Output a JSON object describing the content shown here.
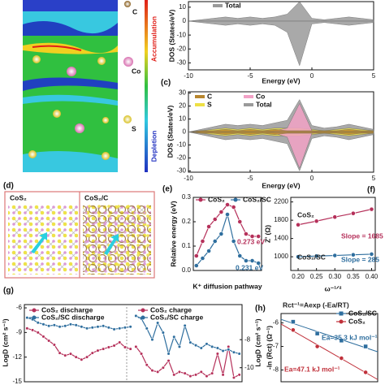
{
  "chart_data": [
    {
      "type": "area",
      "xlabel": "Energy (eV)",
      "ylabel": "DOS (States/eV)",
      "x": [
        -10,
        -9,
        -8,
        -7,
        -6,
        -5,
        -4,
        -3,
        -2,
        -1,
        0,
        1,
        2,
        3,
        4,
        5
      ],
      "series": [
        {
          "name": "Total",
          "color": "#9a9a9a",
          "values": [
            0,
            1,
            2,
            3,
            2,
            3,
            2,
            3,
            5,
            14,
            2,
            1,
            2,
            3,
            2,
            1
          ],
          "values_down": [
            0,
            -1,
            -2,
            -3,
            -2,
            -3,
            -2,
            -3,
            -8,
            -32,
            -2,
            -1,
            -2,
            -3,
            -2,
            -1
          ]
        }
      ],
      "xlim": [
        -10,
        5
      ],
      "xticks": [
        -10,
        -5,
        0,
        5
      ],
      "ylim": [
        -35,
        14
      ],
      "yticks": [
        10,
        0,
        -10,
        -20,
        -30
      ]
    },
    {
      "type": "area",
      "panel_label": "(c)",
      "xlabel": "Energy (eV)",
      "ylabel": "DOS (States/eV)",
      "x": [
        -10,
        -9,
        -8,
        -7,
        -6,
        -5,
        -4,
        -3,
        -2,
        -1,
        0,
        1,
        2,
        3,
        4,
        5
      ],
      "series": [
        {
          "name": "C",
          "color": "#b8862e",
          "values": [
            0,
            1,
            1,
            2,
            1,
            2,
            1,
            2,
            1,
            1,
            1,
            1,
            1,
            2,
            1,
            1
          ],
          "values_down": [
            0,
            -1,
            -1,
            -2,
            -1,
            -2,
            -1,
            -2,
            -1,
            -1,
            -1,
            -1,
            -1,
            -2,
            -1,
            -1
          ]
        },
        {
          "name": "Co",
          "color": "#f2a2c6",
          "values": [
            0,
            0,
            0,
            0,
            0,
            0,
            0,
            1,
            3,
            22,
            1,
            0,
            0,
            0,
            0,
            0
          ],
          "values_down": [
            0,
            0,
            0,
            0,
            0,
            0,
            0,
            -1,
            -4,
            -28,
            -1,
            0,
            0,
            0,
            0,
            0
          ]
        },
        {
          "name": "S",
          "color": "#eee044",
          "values": [
            0,
            1,
            2,
            3,
            2,
            3,
            2,
            3,
            3,
            3,
            2,
            1,
            2,
            3,
            2,
            1
          ],
          "values_down": [
            0,
            -1,
            -2,
            -3,
            -2,
            -3,
            -2,
            -3,
            -3,
            -3,
            -2,
            -1,
            -2,
            -3,
            -2,
            -1
          ]
        },
        {
          "name": "Total",
          "color": "#9a9a9a",
          "values": [
            0,
            2,
            4,
            6,
            5,
            6,
            5,
            7,
            9,
            25,
            5,
            3,
            4,
            6,
            4,
            2
          ],
          "values_down": [
            0,
            -2,
            -4,
            -6,
            -5,
            -6,
            -5,
            -7,
            -9,
            -30,
            -5,
            -3,
            -4,
            -6,
            -4,
            -2
          ]
        }
      ],
      "xlim": [
        -10,
        5
      ],
      "xticks": [
        -10,
        -5,
        0,
        5
      ],
      "ylim": [
        -31,
        31
      ],
      "yticks": [
        30,
        20,
        10,
        0,
        -10,
        -20,
        -30
      ]
    },
    {
      "type": "line",
      "panel_label": "(e)",
      "xlabel": "K⁺ diffusion pathway",
      "ylabel": "Relative energy (eV)",
      "categories": [
        null,
        null,
        null,
        null,
        null,
        null,
        null,
        null,
        null,
        null,
        null
      ],
      "series": [
        {
          "name": "CoS₂",
          "color": "#b5305a",
          "values": [
            0.06,
            0.12,
            0.18,
            0.21,
            0.24,
            0.27,
            0.26,
            0.2,
            0.15,
            0.14,
            0.14
          ]
        },
        {
          "name": "CoS₂/SC",
          "color": "#2e6e9e",
          "values": [
            0.02,
            0.05,
            0.08,
            0.12,
            0.15,
            0.23,
            0.12,
            0.06,
            0.04,
            0.04,
            0.03
          ]
        }
      ],
      "ylim": [
        0,
        0.3
      ],
      "yticks": [
        {
          "value": 0,
          "label": "0.0"
        },
        0.1,
        0.2,
        0.3
      ],
      "annotations": [
        {
          "text": "0.273 eV",
          "color": "#b5305a"
        },
        {
          "text": "0.231 eV",
          "color": "#2e6e9e"
        }
      ]
    },
    {
      "type": "line",
      "panel_label": "(f)",
      "xlabel": "ω⁻¹ᐟ²",
      "ylabel": "Z' (Ω)",
      "x": [
        0.2,
        0.25,
        0.3,
        0.35,
        0.4
      ],
      "series": [
        {
          "name": "CoS₂",
          "color": "#b5305a",
          "values": [
            1700,
            1780,
            1870,
            1950,
            2040
          ]
        },
        {
          "name": "CoS₂/SC",
          "color": "#2e6e9e",
          "values": [
            1000,
            1015,
            1028,
            1043,
            1057
          ]
        }
      ],
      "xlim": [
        0.18,
        0.41
      ],
      "xticks": [
        {
          "value": 0.2,
          "label": "0.20"
        },
        {
          "value": 0.25,
          "label": "0.25"
        },
        {
          "value": 0.3,
          "label": "0.30"
        },
        {
          "value": 0.35,
          "label": "0.35"
        },
        {
          "value": 0.4,
          "label": "0.40"
        }
      ],
      "ylim": [
        700,
        2300
      ],
      "yticks": [
        1000,
        1400,
        1800,
        2200
      ],
      "annotations": [
        {
          "text": "CoS₂",
          "color": "#222"
        },
        {
          "text": "CoS₂/SC",
          "color": "#222"
        },
        {
          "text": "Slope = 1685",
          "color": "#b5305a"
        },
        {
          "text": "Slope = 285",
          "color": "#2e6e9e"
        }
      ]
    },
    {
      "type": "line",
      "panel_label": "(g)",
      "ylabel": "LogD (cm² s⁻¹)",
      "y2label": "LogD (cm² s⁻¹)",
      "categories": [
        null,
        null,
        null,
        null,
        null,
        null,
        null,
        null,
        null,
        null,
        null,
        null,
        null,
        null,
        null,
        null,
        null,
        null,
        null,
        null,
        null,
        null,
        null,
        null,
        null,
        null,
        null,
        null,
        null,
        null,
        null,
        null,
        null,
        null,
        null,
        null,
        null,
        null,
        null,
        null
      ],
      "series": [
        {
          "name": "CoS₂ discharge",
          "color": "#b5305a",
          "values": [
            -8.5,
            -8.7,
            -9.0,
            -9.5,
            -10,
            -10.5,
            -11.5,
            -11.8,
            -11.6,
            -12,
            -12.3,
            -12.0,
            -11.5,
            -11.2,
            -11.0,
            -10.8,
            -10.6,
            -10.2,
            -10.8,
            -11,
            null,
            null,
            null,
            null,
            null,
            null,
            null,
            null,
            null,
            null,
            null,
            null,
            null,
            null,
            null,
            null,
            null,
            null,
            null,
            null
          ]
        },
        {
          "name": "CoS₂/SC discharge",
          "color": "#2e6e9e",
          "values": [
            -7.2,
            -7.4,
            -7.8,
            -8.0,
            -8.2,
            -8.1,
            -8.3,
            -8.2,
            -8.0,
            -8.1,
            -8.3,
            -8.5,
            -8.4,
            -8.3,
            -8.2,
            -8.4,
            -8.6,
            -8.5,
            -8.4,
            -8.3,
            null,
            null,
            null,
            null,
            null,
            null,
            null,
            null,
            null,
            null,
            null,
            null,
            null,
            null,
            null,
            null,
            null,
            null,
            null,
            null
          ]
        },
        {
          "name": "CoS₂ charge",
          "color": "#b5305a",
          "axis": "y2",
          "values": [
            null,
            null,
            null,
            null,
            null,
            null,
            null,
            null,
            null,
            null,
            null,
            null,
            null,
            null,
            null,
            null,
            null,
            null,
            null,
            null,
            -8.5,
            -9.0,
            -9.8,
            -10.2,
            -10.3,
            -10.0,
            -9.5,
            -10.5,
            -10.3,
            -10.4,
            -10.6,
            -10.5,
            -10.3,
            -10.6,
            -10.4,
            -9.0,
            -10.5,
            -8.5,
            -10.7,
            -10.5
          ]
        },
        {
          "name": "CoS₂/SC charge",
          "color": "#2e6e9e",
          "axis": "y2",
          "values": [
            null,
            null,
            null,
            null,
            null,
            null,
            null,
            null,
            null,
            null,
            null,
            null,
            null,
            null,
            null,
            null,
            null,
            null,
            null,
            null,
            -6.3,
            -6.5,
            -7.2,
            -8.0,
            -6.8,
            -7.5,
            -9.0,
            -7.8,
            -8.5,
            -7.0,
            -8.2,
            -8.4,
            -8.6,
            -8.3,
            -8.5,
            -8.6,
            -8.8,
            -8.7,
            -8.9,
            -9.0
          ]
        }
      ],
      "ylim": [
        -15,
        -5.6
      ],
      "yticks": [
        -6,
        -9,
        -12,
        -15
      ],
      "y2lim": [
        -11,
        -5.5
      ],
      "y2ticks": [
        -8,
        -10
      ]
    },
    {
      "type": "scatter",
      "panel_label": "(h)",
      "ylabel": "-ln (Rct) (Ω⁻¹)",
      "fit_line": true,
      "x": [
        0.5,
        1.5,
        2.5,
        3.5
      ],
      "series": [
        {
          "name": "CoS₂/SC",
          "color": "#2e6e9e",
          "marker": "square",
          "values": [
            -5.95,
            -6.45,
            -6.75,
            -7.0
          ]
        },
        {
          "name": "CoS₂",
          "color": "#c0303a",
          "marker": "circle",
          "values": [
            -6.3,
            -7.0,
            -7.5,
            -8.1
          ]
        }
      ],
      "xlim": [
        0,
        4
      ],
      "ylim": [
        -8.5,
        -5.6
      ],
      "yticks": [
        -6,
        -7,
        -8
      ],
      "annotations": [
        {
          "text": "Rct⁻¹=Aexp (-Ea/RT)",
          "color": "#222"
        },
        {
          "text": "Ea=35.3 kJ mol⁻¹",
          "color": "#2e6e9e"
        },
        {
          "text": "Ea=47.1 kJ mol⁻¹",
          "color": "#c0303a"
        }
      ]
    }
  ],
  "panels": {
    "a": {
      "atoms": [
        "C",
        "Co",
        "S"
      ],
      "colorbar": [
        "Accumulation",
        "Depletion"
      ]
    },
    "d": {
      "panel_label": "(d)",
      "labels": [
        "CoS₂",
        "CoS₂/C"
      ]
    }
  }
}
